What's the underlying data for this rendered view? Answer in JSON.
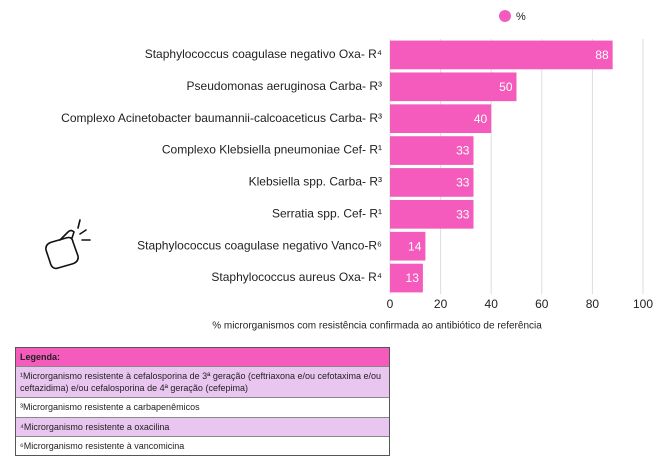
{
  "chart_data": {
    "type": "barh",
    "categories": [
      "Staphylococcus coagulase negativo Oxa- R⁴",
      "Pseudomonas aeruginosa Carba- R³",
      "Complexo Acinetobacter baumannii-calcoaceticus Carba- R³",
      "Complexo Klebsiella pneumoniae Cef- R¹",
      "Klebsiella spp. Carba- R³",
      "Serratia spp. Cef- R¹",
      "Staphylococcus coagulase negativo Vanco-R⁶",
      "Staphylococcus aureus Oxa- R⁴"
    ],
    "series": [
      {
        "name": "%",
        "color": "#f45bbd",
        "values": [
          88,
          50,
          40,
          33,
          33,
          33,
          14,
          13
        ]
      }
    ],
    "xlim": [
      0,
      100
    ],
    "xticks": [
      0,
      20,
      40,
      60,
      80,
      100
    ],
    "grid": true,
    "legend": "top",
    "xlabel": "% microrganismos com resistência confirmada ao antibiótico de referência"
  },
  "legend_table": {
    "title": "Legenda:",
    "rows": [
      "¹Microrganismo resistente à cefalosporina de 3ª geração (ceftriaxona e/ou cefotaxima e/ou ceftazidima) e/ou cefalosporina de 4ª geração (cefepima)",
      "³Microrganismo resistente a carbapenêmicos",
      "⁴Microrganismo resistente a oxacilina",
      "⁶Microrganismo resistente à vancomicina"
    ]
  }
}
